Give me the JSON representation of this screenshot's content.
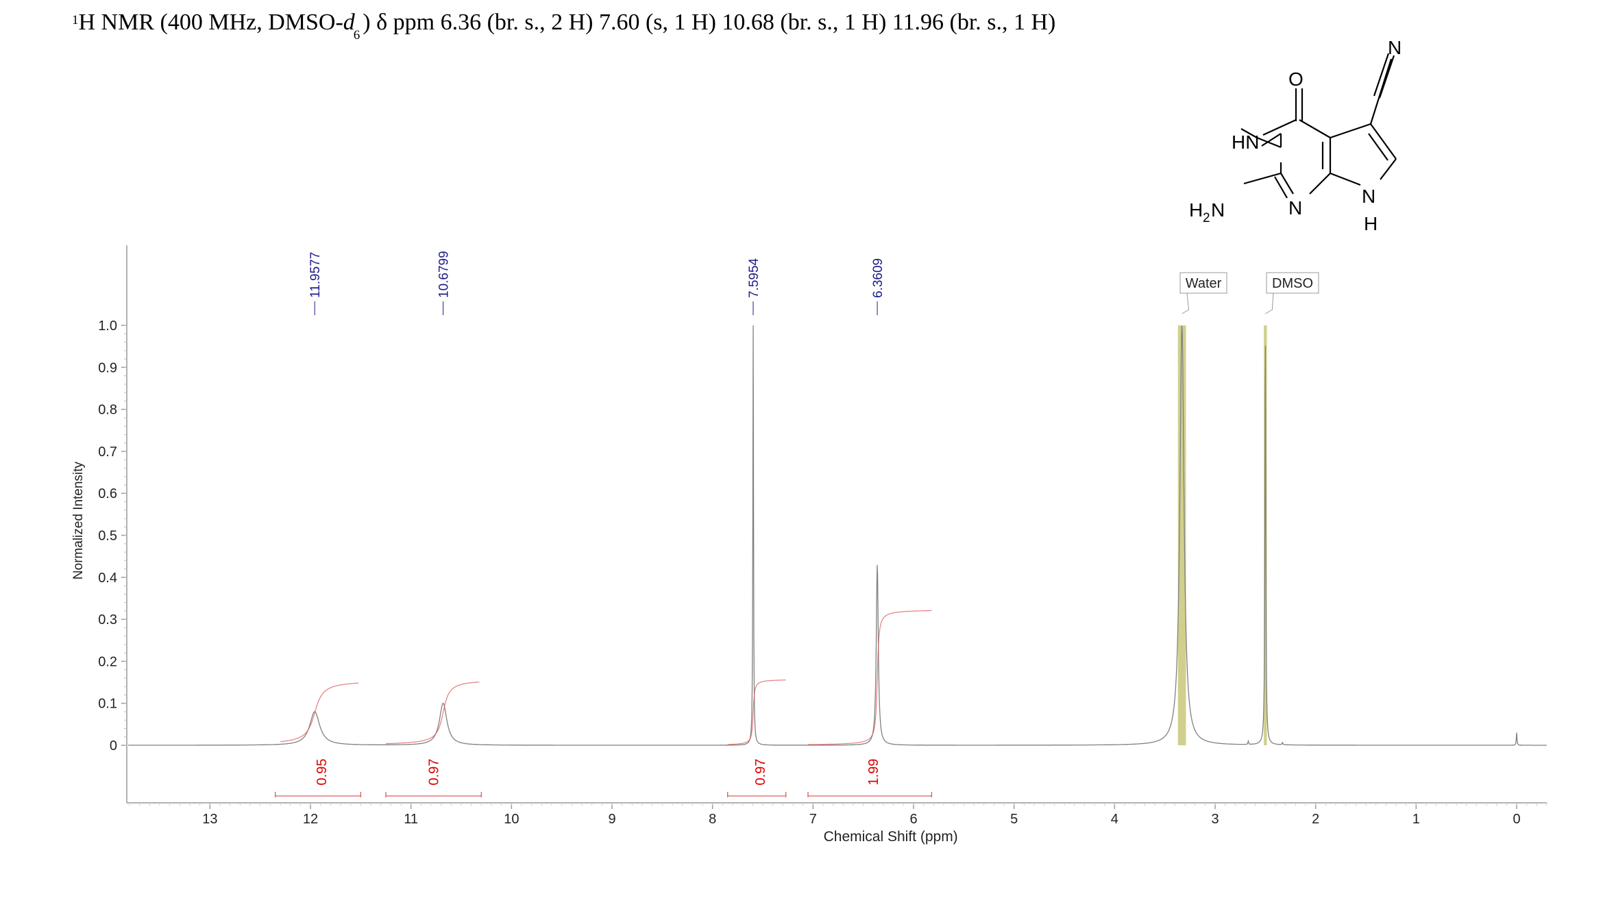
{
  "header": {
    "nucleus_sup": "1",
    "prefix": "H NMR (400 MHz, DMSO-",
    "solvent_italic": "d",
    "solvent_sub": "6",
    "suffix": ") δ ppm 6.36 (br. s., 2 H) 7.60 (s, 1 H) 10.68 (br. s., 1 H) 11.96 (br. s., 1 H)"
  },
  "structure": {
    "atoms": {
      "O": "O",
      "N_nitrile": "N",
      "HN": "HN",
      "N_ring": "N",
      "N_pyrrole": "N",
      "H_pyrrole": "H",
      "H2N_H": "H",
      "H2N_2": "2",
      "H2N_N": "N"
    }
  },
  "colors": {
    "spectrum": "#808080",
    "integral": "#e05a5a",
    "peak_label": "#1a1a8c",
    "integral_label": "#dd0000",
    "solvent_band": "#c8c87a",
    "axis": "#999999"
  },
  "chart_data": {
    "type": "line",
    "title": "",
    "xlabel": "Chemical Shift (ppm)",
    "ylabel": "Normalized Intensity",
    "xlim": [
      13.8,
      -0.3
    ],
    "x_reversed": true,
    "ylim": [
      0,
      1.0
    ],
    "x_ticks": [
      13,
      12,
      11,
      10,
      9,
      8,
      7,
      6,
      5,
      4,
      3,
      2,
      1,
      0
    ],
    "y_ticks": [
      {
        "value": 1.0,
        "label": "1.0"
      },
      {
        "value": 0.9,
        "label": "0.9"
      },
      {
        "value": 0.8,
        "label": "0.8"
      },
      {
        "value": 0.7,
        "label": "0.7"
      },
      {
        "value": 0.6,
        "label": "0.6"
      },
      {
        "value": 0.5,
        "label": "0.5"
      },
      {
        "value": 0.4,
        "label": "0.4"
      },
      {
        "value": 0.3,
        "label": "0.3"
      },
      {
        "value": 0.2,
        "label": "0.2"
      },
      {
        "value": 0.1,
        "label": "0.1"
      },
      {
        "value": 0.0,
        "label": "0"
      }
    ],
    "peaks": [
      {
        "shift": 11.9577,
        "label": "11.9577",
        "height": 0.08,
        "width": 0.06
      },
      {
        "shift": 10.6799,
        "label": "10.6799",
        "height": 0.1,
        "width": 0.045
      },
      {
        "shift": 7.5954,
        "label": "7.5954",
        "height": 1.0,
        "width": 0.004
      },
      {
        "shift": 6.3609,
        "label": "6.3609",
        "height": 0.43,
        "width": 0.012
      }
    ],
    "solvent_peaks": [
      {
        "name": "Water",
        "shift": 3.33,
        "band": [
          3.37,
          3.29
        ],
        "height": 1.0,
        "width": 0.025
      },
      {
        "name": "DMSO",
        "shift": 2.5,
        "band": [
          2.515,
          2.485
        ],
        "height": 1.0,
        "width": 0.005
      }
    ],
    "minor_peaks": [
      {
        "shift": 2.67,
        "height": 0.008
      },
      {
        "shift": 2.33,
        "height": 0.006
      },
      {
        "shift": 0.0,
        "height": 0.03
      }
    ],
    "integrals": [
      {
        "label": "0.95",
        "from": 12.35,
        "to": 11.5,
        "curve_from": 12.3,
        "curve_to": 11.52,
        "start": 0.0,
        "end": 0.155
      },
      {
        "label": "0.97",
        "from": 11.25,
        "to": 10.3,
        "curve_from": 11.25,
        "curve_to": 10.32,
        "start": 0.0,
        "end": 0.157
      },
      {
        "label": "0.97",
        "from": 7.85,
        "to": 7.27,
        "curve_from": 7.85,
        "curve_to": 7.27,
        "start": 0.0,
        "end": 0.157
      },
      {
        "label": "1.99",
        "from": 7.05,
        "to": 5.82,
        "curve_from": 7.05,
        "curve_to": 5.82,
        "start": 0.0,
        "end": 0.323
      }
    ]
  }
}
